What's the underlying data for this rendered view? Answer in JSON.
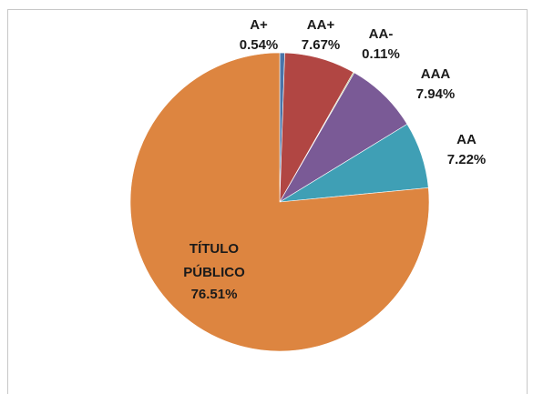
{
  "chart_data": {
    "type": "pie",
    "categories": [
      "A+",
      "AA+",
      "AA-",
      "AAA",
      "AA",
      "TÍTULO PÚBLICO"
    ],
    "values": [
      0.54,
      7.67,
      0.11,
      7.94,
      7.22,
      76.51
    ],
    "value_labels": [
      "0.54%",
      "7.67%",
      "0.11%",
      "7.94%",
      "7.22%",
      "76.51%"
    ],
    "colors": [
      "#4a74a8",
      "#b14643",
      "#8aa84e",
      "#7a5a96",
      "#3f9fb5",
      "#dd8540"
    ]
  }
}
